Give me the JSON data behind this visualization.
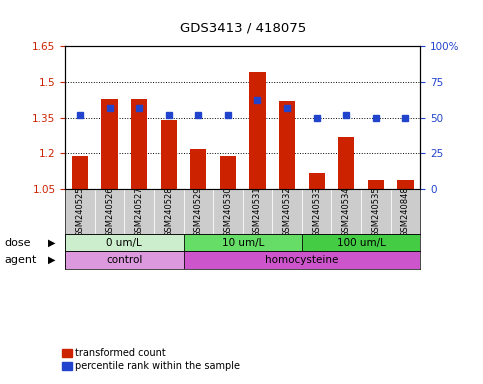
{
  "title": "GDS3413 / 418075",
  "samples": [
    "GSM240525",
    "GSM240526",
    "GSM240527",
    "GSM240528",
    "GSM240529",
    "GSM240530",
    "GSM240531",
    "GSM240532",
    "GSM240533",
    "GSM240534",
    "GSM240535",
    "GSM240848"
  ],
  "red_values": [
    1.19,
    1.43,
    1.43,
    1.34,
    1.22,
    1.19,
    1.54,
    1.42,
    1.12,
    1.27,
    1.09,
    1.09
  ],
  "blue_values": [
    52,
    57,
    57,
    52,
    52,
    52,
    62,
    57,
    50,
    52,
    50,
    50
  ],
  "ylim_left": [
    1.05,
    1.65
  ],
  "ylim_right": [
    0,
    100
  ],
  "yticks_left": [
    1.05,
    1.2,
    1.35,
    1.5,
    1.65
  ],
  "ytick_labels_left": [
    "1.05",
    "1.2",
    "1.35",
    "1.5",
    "1.65"
  ],
  "yticks_right": [
    0,
    25,
    50,
    75,
    100
  ],
  "ytick_labels_right": [
    "0",
    "25",
    "50",
    "75",
    "100%"
  ],
  "red_color": "#cc2200",
  "blue_color": "#2244cc",
  "dose_groups": [
    {
      "label": "0 um/L",
      "start": 0,
      "end": 4,
      "color": "#cceecc"
    },
    {
      "label": "10 um/L",
      "start": 4,
      "end": 8,
      "color": "#66dd66"
    },
    {
      "label": "100 um/L",
      "start": 8,
      "end": 12,
      "color": "#44cc44"
    }
  ],
  "agent_groups": [
    {
      "label": "control",
      "start": 0,
      "end": 4,
      "color": "#dd99dd"
    },
    {
      "label": "homocysteine",
      "start": 4,
      "end": 12,
      "color": "#cc55cc"
    }
  ],
  "dose_label": "dose",
  "agent_label": "agent",
  "legend_red": "transformed count",
  "legend_blue": "percentile rank within the sample",
  "bar_width": 0.55,
  "baseline": 1.05,
  "bg_color": "#ffffff",
  "plot_bg_color": "#ffffff",
  "sample_bg_color": "#cccccc",
  "tick_label_color_left": "#cc2200",
  "tick_label_color_right": "#2244cc",
  "hgrid_vals": [
    1.2,
    1.35,
    1.5
  ],
  "hgrid_color": "#000000"
}
